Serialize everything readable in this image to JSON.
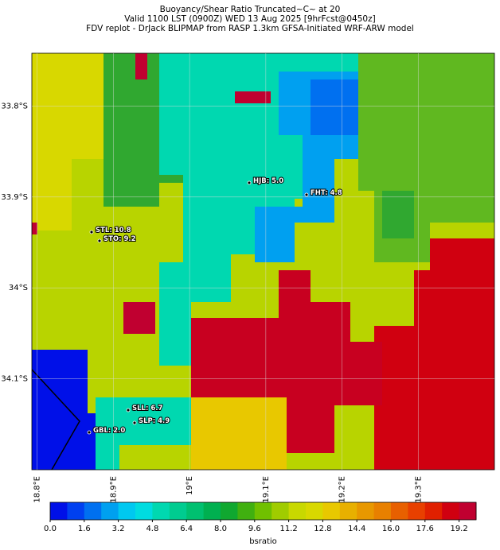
{
  "title_lines": [
    "Buoyancy/Shear Ratio Truncated~C~    at 20",
    "Valid 1100 LST (0900Z) WED 13 Aug 2025 [9hrFcst@0450z]",
    "FDV replot - DrJack BLIPMAP from RASP 1.3km GFSA-Initiated WRF-ARW model"
  ],
  "map": {
    "lon_lim": [
      18.793,
      19.4
    ],
    "lat_lim": [
      -33.742,
      -34.2
    ],
    "lon_ticks": [
      {
        "value": 18.8,
        "label": "18.8°E"
      },
      {
        "value": 18.9,
        "label": "18.9°E"
      },
      {
        "value": 19.0,
        "label": "19°E"
      },
      {
        "value": 19.1,
        "label": "19.1°E"
      },
      {
        "value": 19.2,
        "label": "19.2°E"
      },
      {
        "value": 19.3,
        "label": "19.3°E"
      }
    ],
    "lat_ticks": [
      {
        "value": -33.8,
        "label": "33.8°S"
      },
      {
        "value": -33.9,
        "label": "33.9°S"
      },
      {
        "value": -34.0,
        "label": "34°S"
      },
      {
        "value": -34.1,
        "label": "34.1°S"
      }
    ],
    "stations": [
      {
        "label": "HJB: 5.0"
      },
      {
        "label": "FHT: 4.8"
      },
      {
        "label": "STL: 10.8"
      },
      {
        "label": "STO: 9.2"
      },
      {
        "label": "SLL: 6.7"
      },
      {
        "label": "SLP: 4.9"
      },
      {
        "label": "GBL: 2.0"
      }
    ]
  },
  "colorbar": {
    "label": "bsratio",
    "lim": [
      0,
      20
    ],
    "colors": [
      "#0010e8",
      "#0040f0",
      "#0070f0",
      "#00a0f0",
      "#00c8f0",
      "#00dce0",
      "#00d8b0",
      "#00cc90",
      "#00c070",
      "#00b050",
      "#10a830",
      "#40b010",
      "#70c000",
      "#a0cc00",
      "#c8d800",
      "#d8d800",
      "#e8c800",
      "#e8b000",
      "#e89800",
      "#e88000",
      "#e86000",
      "#e84000",
      "#e02000",
      "#d00010",
      "#c00030"
    ],
    "ticks": [
      {
        "value": 0,
        "label": "0.0"
      },
      1.6,
      3.2,
      4.8,
      6.4,
      {
        "value": 8,
        "label": "8.0"
      },
      9.6,
      11.2,
      12.8,
      14.4,
      {
        "value": 16,
        "label": "16.0"
      },
      17.6,
      19.2
    ]
  }
}
